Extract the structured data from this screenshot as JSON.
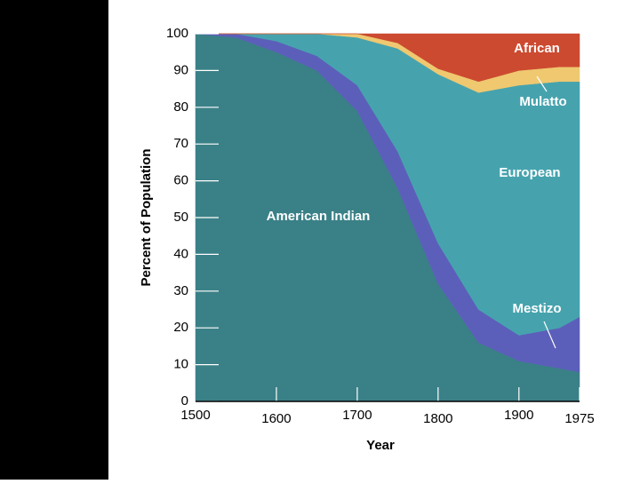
{
  "chart_data": {
    "type": "stacked-area",
    "x_label": "Year",
    "y_label": "Percent of Population",
    "x": [
      1500,
      1550,
      1600,
      1650,
      1700,
      1750,
      1800,
      1850,
      1900,
      1950,
      1975
    ],
    "series": [
      {
        "name": "American Indian",
        "color": "#3a8087",
        "values": [
          100,
          99,
          95,
          90,
          79,
          58,
          32,
          16,
          11,
          9,
          8
        ]
      },
      {
        "name": "Mestizo",
        "color": "#5c5fba",
        "values": [
          0,
          1,
          3,
          4,
          7,
          10,
          11,
          9,
          7,
          11,
          15
        ]
      },
      {
        "name": "European",
        "color": "#46a3ae",
        "values": [
          0,
          0,
          2,
          6,
          13,
          28,
          46,
          59,
          68,
          67,
          64
        ]
      },
      {
        "name": "Mulatto",
        "color": "#efc870",
        "values": [
          0,
          0,
          0,
          0,
          1,
          1.5,
          1.5,
          3,
          4,
          4,
          4
        ]
      },
      {
        "name": "African",
        "color": "#cc4a30",
        "values": [
          0,
          0,
          0,
          0,
          0,
          2.5,
          9.5,
          13,
          10,
          9,
          9
        ]
      }
    ],
    "xlim": [
      1500,
      1975
    ],
    "xticks": [
      1500,
      1600,
      1700,
      1800,
      1900,
      1975
    ],
    "ylim": [
      0,
      100
    ],
    "yticks": [
      0,
      10,
      20,
      30,
      40,
      50,
      60,
      70,
      80,
      90,
      100
    ]
  }
}
